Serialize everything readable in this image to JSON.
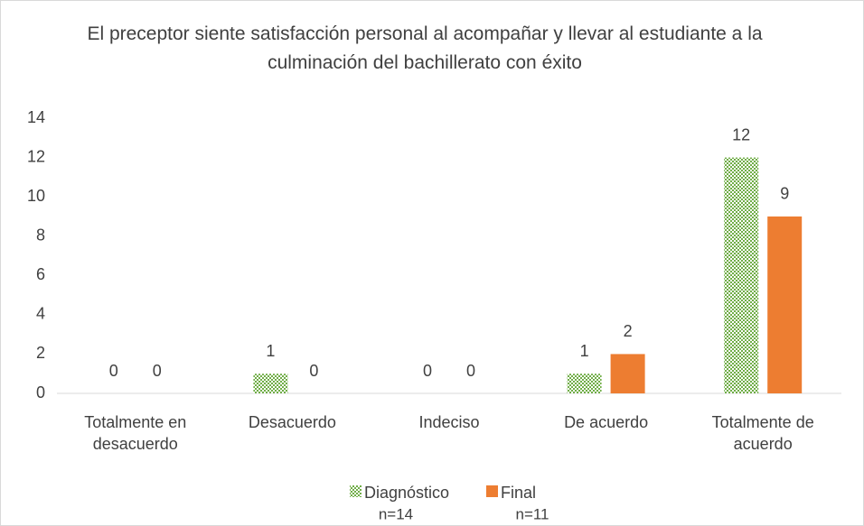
{
  "chart_data": {
    "type": "bar",
    "title": "El preceptor siente satisfacción personal al acompañar y llevar al estudiante a la culminación del bachillerato con éxito",
    "categories": [
      "Totalmente en desacuerdo",
      "Desacuerdo",
      "Indeciso",
      "De acuerdo",
      "Totalmente de acuerdo"
    ],
    "series": [
      {
        "name": "Diagnóstico",
        "note": "n=14",
        "color": "#70ad47",
        "pattern": "checker",
        "values": [
          0,
          1,
          0,
          1,
          12
        ]
      },
      {
        "name": "Final",
        "note": "n=11",
        "color": "#ed7d31",
        "values": [
          0,
          0,
          0,
          2,
          9
        ]
      }
    ],
    "ylim": [
      0,
      14
    ],
    "yticks": [
      0,
      2,
      4,
      6,
      8,
      10,
      12,
      14
    ],
    "grid": false,
    "legend": "bottom"
  }
}
